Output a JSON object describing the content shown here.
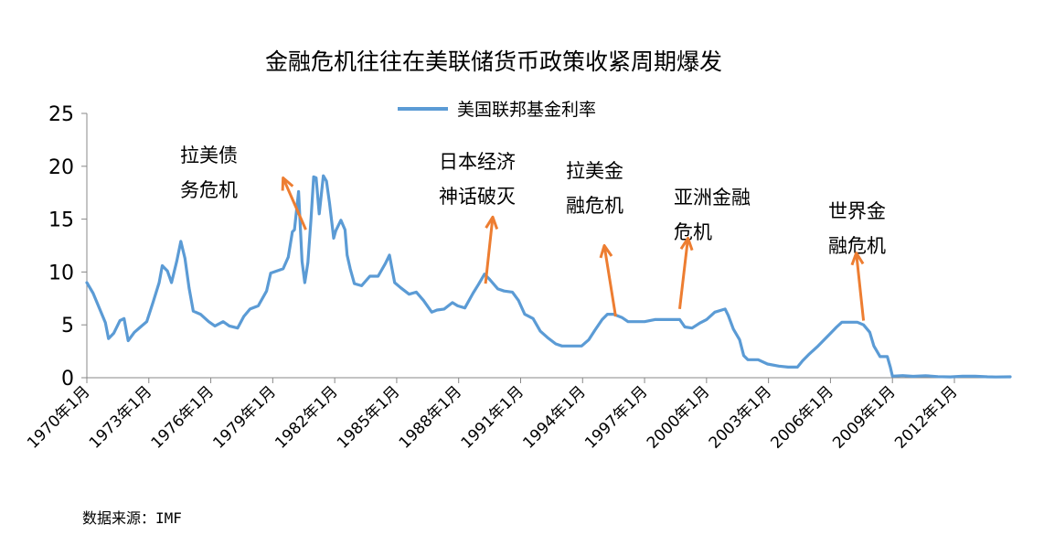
{
  "chart_data": {
    "type": "line",
    "title": "金融危机往往在美联储货币政策收紧周期爆发",
    "source": "数据来源：IMF",
    "ylim": [
      0,
      25
    ],
    "yticks": [
      0,
      5,
      10,
      15,
      20,
      25
    ],
    "xlim": [
      1970,
      2014.7
    ],
    "xticks": [
      {
        "x": 1970,
        "label": "1970年1月"
      },
      {
        "x": 1973,
        "label": "1973年1月"
      },
      {
        "x": 1976,
        "label": "1976年1月"
      },
      {
        "x": 1979,
        "label": "1979年1月"
      },
      {
        "x": 1982,
        "label": "1982年1月"
      },
      {
        "x": 1985,
        "label": "1985年1月"
      },
      {
        "x": 1988,
        "label": "1988年1月"
      },
      {
        "x": 1991,
        "label": "1991年1月"
      },
      {
        "x": 1994,
        "label": "1994年1月"
      },
      {
        "x": 1997,
        "label": "1997年1月"
      },
      {
        "x": 2000,
        "label": "2000年1月"
      },
      {
        "x": 2003,
        "label": "2003年1月"
      },
      {
        "x": 2006,
        "label": "2006年1月"
      },
      {
        "x": 2009,
        "label": "2009年1月"
      },
      {
        "x": 2012,
        "label": "2012年1月"
      }
    ],
    "grid": false,
    "legend_position": "top-center",
    "series": [
      {
        "name": "美国联邦基金利率",
        "color": "#5b9bd5",
        "points": [
          [
            1970.0,
            9.0
          ],
          [
            1970.3,
            8.0
          ],
          [
            1970.6,
            6.6
          ],
          [
            1970.9,
            5.2
          ],
          [
            1971.05,
            3.7
          ],
          [
            1971.3,
            4.2
          ],
          [
            1971.6,
            5.4
          ],
          [
            1971.8,
            5.6
          ],
          [
            1972.0,
            3.5
          ],
          [
            1972.3,
            4.3
          ],
          [
            1972.6,
            4.8
          ],
          [
            1972.9,
            5.3
          ],
          [
            1973.2,
            7.1
          ],
          [
            1973.5,
            9.0
          ],
          [
            1973.65,
            10.6
          ],
          [
            1973.9,
            10.1
          ],
          [
            1974.1,
            9.0
          ],
          [
            1974.35,
            11.0
          ],
          [
            1974.55,
            12.9
          ],
          [
            1974.75,
            11.3
          ],
          [
            1974.95,
            8.5
          ],
          [
            1975.15,
            6.3
          ],
          [
            1975.5,
            6.0
          ],
          [
            1975.9,
            5.3
          ],
          [
            1976.2,
            4.9
          ],
          [
            1976.6,
            5.3
          ],
          [
            1976.9,
            4.9
          ],
          [
            1977.3,
            4.7
          ],
          [
            1977.6,
            5.8
          ],
          [
            1977.9,
            6.5
          ],
          [
            1978.3,
            6.8
          ],
          [
            1978.7,
            8.2
          ],
          [
            1978.9,
            9.9
          ],
          [
            1979.2,
            10.1
          ],
          [
            1979.5,
            10.3
          ],
          [
            1979.75,
            11.4
          ],
          [
            1979.95,
            13.8
          ],
          [
            1980.05,
            14.0
          ],
          [
            1980.25,
            17.6
          ],
          [
            1980.42,
            11.0
          ],
          [
            1980.55,
            9.0
          ],
          [
            1980.7,
            10.9
          ],
          [
            1980.85,
            15.0
          ],
          [
            1980.98,
            19.0
          ],
          [
            1981.1,
            18.9
          ],
          [
            1981.25,
            15.5
          ],
          [
            1981.45,
            19.1
          ],
          [
            1981.6,
            18.6
          ],
          [
            1981.75,
            16.5
          ],
          [
            1981.95,
            13.2
          ],
          [
            1982.05,
            13.9
          ],
          [
            1982.3,
            14.9
          ],
          [
            1982.5,
            14.0
          ],
          [
            1982.6,
            11.6
          ],
          [
            1982.75,
            10.3
          ],
          [
            1982.95,
            8.9
          ],
          [
            1983.3,
            8.7
          ],
          [
            1983.7,
            9.6
          ],
          [
            1984.1,
            9.6
          ],
          [
            1984.45,
            10.8
          ],
          [
            1984.65,
            11.6
          ],
          [
            1984.9,
            9.0
          ],
          [
            1985.2,
            8.5
          ],
          [
            1985.6,
            7.9
          ],
          [
            1985.95,
            8.1
          ],
          [
            1986.3,
            7.3
          ],
          [
            1986.7,
            6.2
          ],
          [
            1986.95,
            6.4
          ],
          [
            1987.3,
            6.5
          ],
          [
            1987.7,
            7.1
          ],
          [
            1987.95,
            6.8
          ],
          [
            1988.3,
            6.6
          ],
          [
            1988.7,
            8.0
          ],
          [
            1988.95,
            8.8
          ],
          [
            1989.25,
            9.8
          ],
          [
            1989.5,
            9.3
          ],
          [
            1989.9,
            8.4
          ],
          [
            1990.2,
            8.2
          ],
          [
            1990.6,
            8.1
          ],
          [
            1990.9,
            7.3
          ],
          [
            1991.2,
            6.0
          ],
          [
            1991.6,
            5.6
          ],
          [
            1991.95,
            4.4
          ],
          [
            1992.3,
            3.8
          ],
          [
            1992.7,
            3.2
          ],
          [
            1993.0,
            3.0
          ],
          [
            1993.5,
            3.0
          ],
          [
            1993.95,
            3.0
          ],
          [
            1994.3,
            3.6
          ],
          [
            1994.6,
            4.5
          ],
          [
            1994.95,
            5.5
          ],
          [
            1995.2,
            6.0
          ],
          [
            1995.5,
            6.0
          ],
          [
            1995.9,
            5.7
          ],
          [
            1996.2,
            5.3
          ],
          [
            1996.7,
            5.3
          ],
          [
            1997.0,
            5.3
          ],
          [
            1997.5,
            5.5
          ],
          [
            1997.95,
            5.5
          ],
          [
            1998.3,
            5.5
          ],
          [
            1998.7,
            5.5
          ],
          [
            1998.95,
            4.8
          ],
          [
            1999.3,
            4.7
          ],
          [
            1999.7,
            5.2
          ],
          [
            2000.0,
            5.5
          ],
          [
            2000.4,
            6.2
          ],
          [
            2000.9,
            6.5
          ],
          [
            2001.05,
            5.9
          ],
          [
            2001.3,
            4.6
          ],
          [
            2001.6,
            3.6
          ],
          [
            2001.8,
            2.1
          ],
          [
            2002.0,
            1.7
          ],
          [
            2002.5,
            1.7
          ],
          [
            2002.95,
            1.3
          ],
          [
            2003.5,
            1.1
          ],
          [
            2003.95,
            1.0
          ],
          [
            2004.4,
            1.0
          ],
          [
            2004.65,
            1.6
          ],
          [
            2004.95,
            2.2
          ],
          [
            2005.4,
            3.0
          ],
          [
            2005.9,
            4.0
          ],
          [
            2006.3,
            4.8
          ],
          [
            2006.55,
            5.25
          ],
          [
            2006.9,
            5.25
          ],
          [
            2007.3,
            5.25
          ],
          [
            2007.6,
            5.0
          ],
          [
            2007.9,
            4.3
          ],
          [
            2008.1,
            3.0
          ],
          [
            2008.4,
            2.0
          ],
          [
            2008.75,
            2.0
          ],
          [
            2008.9,
            1.0
          ],
          [
            2009.0,
            0.15
          ],
          [
            2009.5,
            0.2
          ],
          [
            2010.0,
            0.13
          ],
          [
            2010.6,
            0.19
          ],
          [
            2011.2,
            0.1
          ],
          [
            2011.8,
            0.08
          ],
          [
            2012.4,
            0.15
          ],
          [
            2013.0,
            0.14
          ],
          [
            2013.6,
            0.09
          ],
          [
            2014.0,
            0.07
          ],
          [
            2014.7,
            0.09
          ]
        ]
      }
    ],
    "annotations": [
      {
        "lines": [
          "拉美债",
          "务危机"
        ],
        "arrow": {
          "from": [
            1980.6,
            14.0
          ],
          "to": [
            1979.5,
            18.9
          ]
        }
      },
      {
        "lines": [
          "日本经济",
          "神话破灭"
        ],
        "arrow": {
          "from": [
            1989.3,
            8.9
          ],
          "to": [
            1989.65,
            15.2
          ]
        }
      },
      {
        "lines": [
          "拉美金",
          "融危机"
        ],
        "arrow": {
          "from": [
            1995.6,
            5.8
          ],
          "to": [
            1995.05,
            12.5
          ]
        }
      },
      {
        "lines": [
          "亚洲金融",
          "危机"
        ],
        "arrow": {
          "from": [
            1998.7,
            6.5
          ],
          "to": [
            1999.1,
            13.2
          ]
        }
      },
      {
        "lines": [
          "世界金",
          "融危机"
        ],
        "arrow": {
          "from": [
            2007.6,
            5.4
          ],
          "to": [
            2007.25,
            11.8
          ]
        }
      }
    ]
  }
}
